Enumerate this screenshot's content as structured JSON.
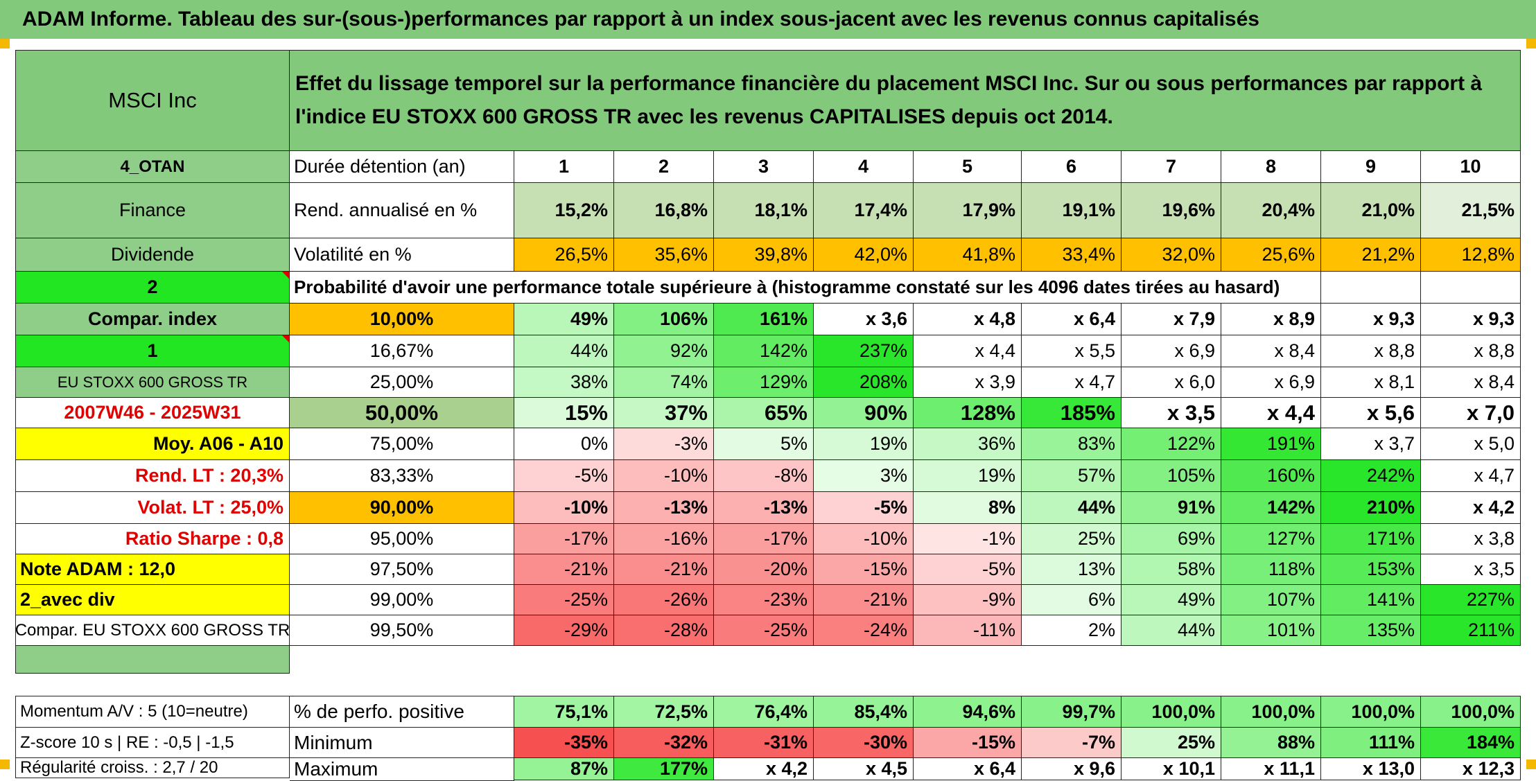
{
  "title": "ADAM Informe. Tableau des sur-(sous-)performances par rapport à un index sous-jacent avec les revenus connus capitalisés",
  "asset_name": "MSCI Inc",
  "header_text": "Effet du lissage temporel sur la performance financière du placement MSCI Inc. Sur ou sous performances par rapport à l'indice EU STOXX 600 GROSS TR avec les revenus CAPITALISES depuis oct 2014.",
  "left_labels": [
    "4_OTAN",
    "Finance",
    "Dividende",
    "2",
    "Compar. index",
    "1",
    "EU STOXX 600 GROSS TR",
    "2007W46 - 2025W31",
    "Moy. A06 - A10",
    "Rend. LT :    20,3%",
    "Volat. LT :    25,0%",
    "Ratio Sharpe :    0,8",
    "Note ADAM : 12,0",
    "2_avec div",
    "Compar. EU STOXX 600 GROSS TR"
  ],
  "holding_label": "Durée détention (an)",
  "years": [
    "1",
    "2",
    "3",
    "4",
    "5",
    "6",
    "7",
    "8",
    "9",
    "10"
  ],
  "rend_label": "Rend. annualisé en %",
  "rend_values": [
    "15,2%",
    "16,8%",
    "18,1%",
    "17,4%",
    "17,9%",
    "19,1%",
    "19,6%",
    "20,4%",
    "21,0%",
    "21,5%"
  ],
  "vol_label": "Volatilité en %",
  "vol_values": [
    "26,5%",
    "35,6%",
    "39,8%",
    "42,0%",
    "41,8%",
    "33,4%",
    "32,0%",
    "25,6%",
    "21,2%",
    "12,8%"
  ],
  "prob_label": "Probabilité d'avoir une performance totale supérieure à (histogramme constaté sur les 4096 dates tirées au hasard)",
  "prob_rows": [
    {
      "pct": "10,00%",
      "values": [
        "49%",
        "106%",
        "161%",
        "x 3,6",
        "x 4,8",
        "x 6,4",
        "x 7,9",
        "x 8,9",
        "x 9,3",
        "x 9,3"
      ]
    },
    {
      "pct": "16,67%",
      "values": [
        "44%",
        "92%",
        "142%",
        "237%",
        "x 4,4",
        "x 5,5",
        "x 6,9",
        "x 8,4",
        "x 8,8",
        "x 8,8"
      ]
    },
    {
      "pct": "25,00%",
      "values": [
        "38%",
        "74%",
        "129%",
        "208%",
        "x 3,9",
        "x 4,7",
        "x 6,0",
        "x 6,9",
        "x 8,1",
        "x 8,4"
      ]
    },
    {
      "pct": "50,00%",
      "values": [
        "15%",
        "37%",
        "65%",
        "90%",
        "128%",
        "185%",
        "x 3,5",
        "x 4,4",
        "x 5,6",
        "x 7,0"
      ]
    },
    {
      "pct": "75,00%",
      "values": [
        "0%",
        "-3%",
        "5%",
        "19%",
        "36%",
        "83%",
        "122%",
        "191%",
        "x 3,7",
        "x 5,0"
      ]
    },
    {
      "pct": "83,33%",
      "values": [
        "-5%",
        "-10%",
        "-8%",
        "3%",
        "19%",
        "57%",
        "105%",
        "160%",
        "242%",
        "x 4,7"
      ]
    },
    {
      "pct": "90,00%",
      "values": [
        "-10%",
        "-13%",
        "-13%",
        "-5%",
        "8%",
        "44%",
        "91%",
        "142%",
        "210%",
        "x 4,2"
      ]
    },
    {
      "pct": "95,00%",
      "values": [
        "-17%",
        "-16%",
        "-17%",
        "-10%",
        "-1%",
        "25%",
        "69%",
        "127%",
        "171%",
        "x 3,8"
      ]
    },
    {
      "pct": "97,50%",
      "values": [
        "-21%",
        "-21%",
        "-20%",
        "-15%",
        "-5%",
        "13%",
        "58%",
        "118%",
        "153%",
        "x 3,5"
      ]
    },
    {
      "pct": "99,00%",
      "values": [
        "-25%",
        "-26%",
        "-23%",
        "-21%",
        "-9%",
        "6%",
        "49%",
        "107%",
        "141%",
        "227%"
      ]
    },
    {
      "pct": "99,50%",
      "values": [
        "-29%",
        "-28%",
        "-25%",
        "-24%",
        "-11%",
        "2%",
        "44%",
        "101%",
        "135%",
        "211%"
      ]
    }
  ],
  "bottom_rows": [
    {
      "left": "Momentum A/V : 5 (10=neutre)",
      "label": "% de perfo. positive",
      "values": [
        "75,1%",
        "72,5%",
        "76,4%",
        "85,4%",
        "94,6%",
        "99,7%",
        "100,0%",
        "100,0%",
        "100,0%",
        "100,0%"
      ]
    },
    {
      "left": "Z-score 10 s | RE : -0,5 | -1,5",
      "label": "Minimum",
      "values": [
        "-35%",
        "-32%",
        "-31%",
        "-30%",
        "-15%",
        "-7%",
        "25%",
        "88%",
        "111%",
        "184%"
      ]
    },
    {
      "left": "Régularité croiss. : 2,7 / 20",
      "label": "Maximum",
      "values": [
        "87%",
        "177%",
        "x 4,2",
        "x 4,5",
        "x 6,4",
        "x 9,6",
        "x 10,1",
        "x 11,1",
        "x 13,0",
        "x 12,3"
      ]
    }
  ],
  "colors": {
    "title_green": "#82c97c",
    "header_green": "#82c97c",
    "label_green": "#8fce88",
    "bright_green": "#21e621",
    "yellow": "#ffff00",
    "orange": "#ffc000",
    "light_green": "#c6e0b4",
    "red_text": "#e00000"
  }
}
